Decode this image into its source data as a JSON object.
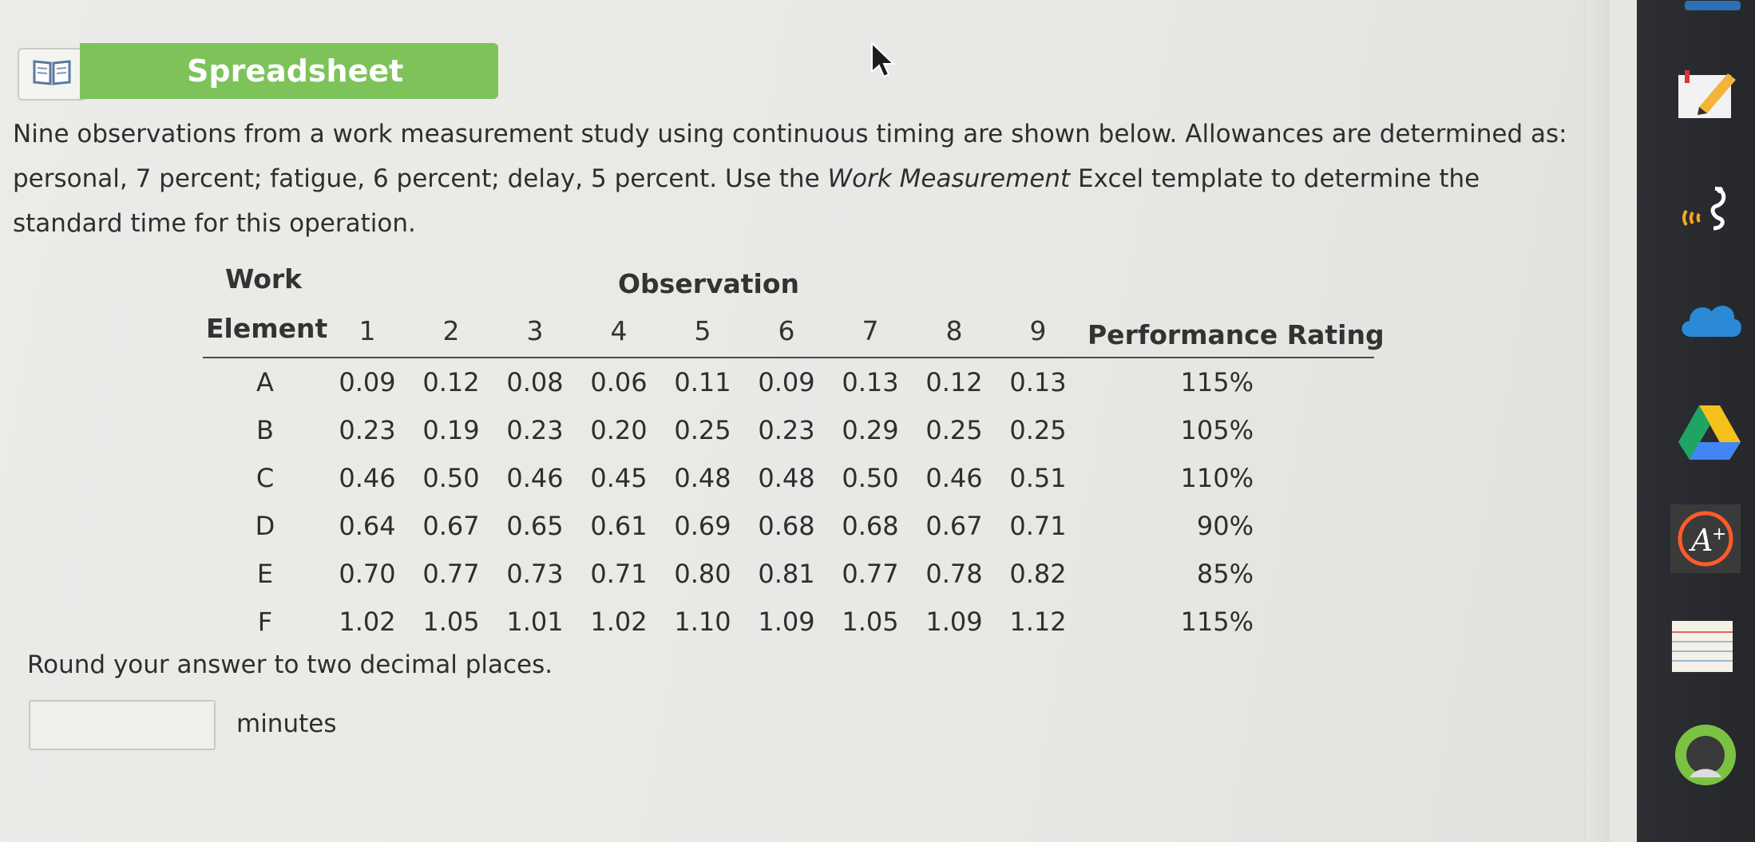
{
  "tab": {
    "label": "Spreadsheet"
  },
  "question": {
    "part1": "Nine observations from a work measurement study using continuous timing are shown below. Allowances are determined as: personal, 7 percent; fatigue, 6 percent; delay, 5 percent. Use the ",
    "emphasis": "Work Measurement",
    "part2": " Excel template to determine the standard time for this operation."
  },
  "table": {
    "work_label": "Work",
    "element_label": "Element",
    "observation_label": "Observation",
    "rating_label": "Performance Rating",
    "columns": [
      "1",
      "2",
      "3",
      "4",
      "5",
      "6",
      "7",
      "8",
      "9"
    ],
    "rows": [
      {
        "element": "A",
        "values": [
          "0.09",
          "0.12",
          "0.08",
          "0.06",
          "0.11",
          "0.09",
          "0.13",
          "0.12",
          "0.13"
        ],
        "rating": "115%"
      },
      {
        "element": "B",
        "values": [
          "0.23",
          "0.19",
          "0.23",
          "0.20",
          "0.25",
          "0.23",
          "0.29",
          "0.25",
          "0.25"
        ],
        "rating": "105%"
      },
      {
        "element": "C",
        "values": [
          "0.46",
          "0.50",
          "0.46",
          "0.45",
          "0.48",
          "0.48",
          "0.50",
          "0.46",
          "0.51"
        ],
        "rating": "110%"
      },
      {
        "element": "D",
        "values": [
          "0.64",
          "0.67",
          "0.65",
          "0.61",
          "0.69",
          "0.68",
          "0.68",
          "0.67",
          "0.71"
        ],
        "rating": "90%"
      },
      {
        "element": "E",
        "values": [
          "0.70",
          "0.77",
          "0.73",
          "0.71",
          "0.80",
          "0.81",
          "0.77",
          "0.78",
          "0.82"
        ],
        "rating": "85%"
      },
      {
        "element": "F",
        "values": [
          "1.02",
          "1.05",
          "1.01",
          "1.02",
          "1.10",
          "1.09",
          "1.05",
          "1.09",
          "1.12"
        ],
        "rating": "115%"
      }
    ]
  },
  "instruction": "Round your answer to two decimal places.",
  "answer": {
    "value": "",
    "unit": "minutes"
  },
  "colors": {
    "tab_green": "#7dc35a",
    "dock": "#2a2c30"
  },
  "dock_icons": [
    "annotate-icon",
    "read-aloud-icon",
    "onedrive-icon",
    "google-drive-icon",
    "a-plus-icon",
    "notes-icon",
    "circle-app-icon"
  ]
}
